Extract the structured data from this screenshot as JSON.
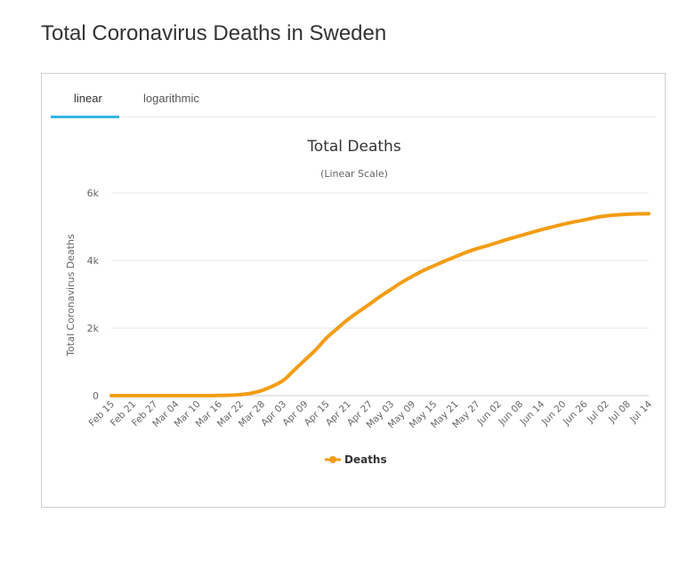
{
  "page": {
    "title": "Total Coronavirus Deaths in Sweden"
  },
  "tabs": [
    {
      "label": "linear",
      "active": true
    },
    {
      "label": "logarithmic",
      "active": false
    }
  ],
  "colors": {
    "series": "#f39c12",
    "tab_active": "#35b4e8",
    "grid": "#e6e6e6"
  },
  "chart_data": {
    "type": "line",
    "title": "Total Deaths",
    "subtitle": "(Linear Scale)",
    "ylabel": "Total Coronavirus Deaths",
    "xlabel": "",
    "ylim": [
      0,
      6000
    ],
    "yticks": [
      {
        "value": 0,
        "label": "0"
      },
      {
        "value": 2000,
        "label": "2k"
      },
      {
        "value": 4000,
        "label": "4k"
      },
      {
        "value": 6000,
        "label": "6k"
      }
    ],
    "x_index_range": [
      0,
      150
    ],
    "xticks": [
      {
        "index": 0,
        "label": "Feb 15"
      },
      {
        "index": 6,
        "label": "Feb 21"
      },
      {
        "index": 12,
        "label": "Feb 27"
      },
      {
        "index": 18,
        "label": "Mar 04"
      },
      {
        "index": 24,
        "label": "Mar 10"
      },
      {
        "index": 30,
        "label": "Mar 16"
      },
      {
        "index": 36,
        "label": "Mar 22"
      },
      {
        "index": 42,
        "label": "Mar 28"
      },
      {
        "index": 48,
        "label": "Apr 03"
      },
      {
        "index": 54,
        "label": "Apr 09"
      },
      {
        "index": 60,
        "label": "Apr 15"
      },
      {
        "index": 66,
        "label": "Apr 21"
      },
      {
        "index": 72,
        "label": "Apr 27"
      },
      {
        "index": 78,
        "label": "May 03"
      },
      {
        "index": 84,
        "label": "May 09"
      },
      {
        "index": 90,
        "label": "May 15"
      },
      {
        "index": 96,
        "label": "May 21"
      },
      {
        "index": 102,
        "label": "May 27"
      },
      {
        "index": 108,
        "label": "Jun 02"
      },
      {
        "index": 114,
        "label": "Jun 08"
      },
      {
        "index": 120,
        "label": "Jun 14"
      },
      {
        "index": 126,
        "label": "Jun 20"
      },
      {
        "index": 132,
        "label": "Jun 26"
      },
      {
        "index": 138,
        "label": "Jul 02"
      },
      {
        "index": 144,
        "label": "Jul 08"
      },
      {
        "index": 150,
        "label": "Jul 14"
      }
    ],
    "legend": {
      "position": "bottom-center",
      "entries": [
        "Deaths"
      ]
    },
    "series": [
      {
        "name": "Deaths",
        "points": [
          [
            0,
            0
          ],
          [
            24,
            0
          ],
          [
            30,
            5
          ],
          [
            34,
            15
          ],
          [
            36,
            30
          ],
          [
            39,
            70
          ],
          [
            42,
            150
          ],
          [
            45,
            280
          ],
          [
            48,
            450
          ],
          [
            51,
            750
          ],
          [
            54,
            1050
          ],
          [
            57,
            1350
          ],
          [
            60,
            1700
          ],
          [
            63,
            1980
          ],
          [
            66,
            2250
          ],
          [
            69,
            2480
          ],
          [
            72,
            2700
          ],
          [
            75,
            2930
          ],
          [
            78,
            3140
          ],
          [
            81,
            3350
          ],
          [
            84,
            3530
          ],
          [
            87,
            3700
          ],
          [
            90,
            3840
          ],
          [
            93,
            3980
          ],
          [
            96,
            4110
          ],
          [
            99,
            4240
          ],
          [
            102,
            4350
          ],
          [
            105,
            4440
          ],
          [
            108,
            4540
          ],
          [
            111,
            4640
          ],
          [
            114,
            4730
          ],
          [
            117,
            4820
          ],
          [
            120,
            4910
          ],
          [
            123,
            4990
          ],
          [
            126,
            5070
          ],
          [
            129,
            5140
          ],
          [
            132,
            5200
          ],
          [
            135,
            5270
          ],
          [
            138,
            5320
          ],
          [
            141,
            5350
          ],
          [
            144,
            5370
          ],
          [
            147,
            5380
          ],
          [
            150,
            5385
          ]
        ]
      }
    ]
  }
}
